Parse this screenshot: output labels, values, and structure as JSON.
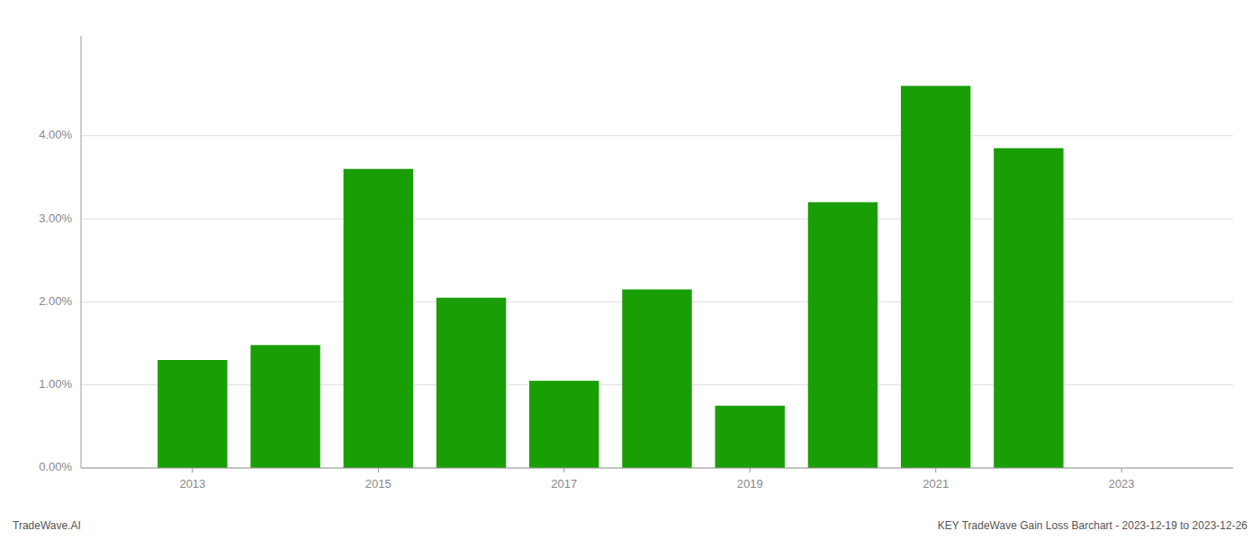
{
  "chart_data": {
    "type": "bar",
    "x": [
      2013,
      2014,
      2015,
      2016,
      2017,
      2018,
      2019,
      2020,
      2021,
      2022
    ],
    "values": [
      0.013,
      0.0148,
      0.036,
      0.0205,
      0.0105,
      0.0215,
      0.0075,
      0.032,
      0.046,
      0.0385
    ],
    "color": "#1a9e06",
    "xlim": [
      2011.8,
      2024.2
    ],
    "xticks": [
      2013,
      2015,
      2017,
      2019,
      2021,
      2023
    ],
    "ylim": [
      0,
      0.052
    ],
    "yticks": [
      {
        "value": 0.0,
        "label": "0.00%"
      },
      {
        "value": 0.01,
        "label": "1.00%"
      },
      {
        "value": 0.02,
        "label": "2.00%"
      },
      {
        "value": 0.03,
        "label": "3.00%"
      },
      {
        "value": 0.04,
        "label": "4.00%"
      }
    ],
    "grid": true,
    "annotations": [
      "TradeWave.AI",
      "KEY TradeWave Gain Loss Barchart - 2023-12-19 to 2023-12-26"
    ]
  }
}
